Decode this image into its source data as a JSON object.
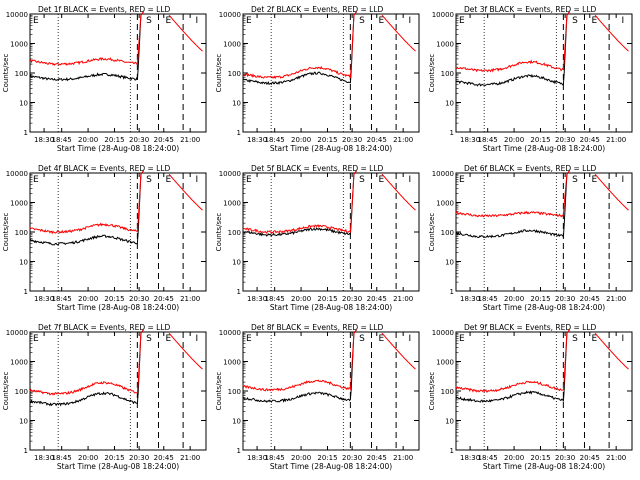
{
  "colors": {
    "events": "#000000",
    "lld": "#ff0000",
    "axes": "#000000",
    "background": "#ffffff"
  },
  "common": {
    "ylabel": "Counts/sec",
    "xlabel": "Start Time (28-Aug-08 18:24:00)",
    "xticks": [
      "18:30",
      "18:45",
      "20:00",
      "20:15",
      "20:30",
      "20:45",
      "21:00"
    ],
    "yticks": [
      "1",
      "10",
      "100",
      "1000",
      "10000"
    ],
    "markers": [
      "S",
      "E",
      "I"
    ],
    "y_scale": "log",
    "ylim": [
      1,
      10000
    ]
  },
  "chart_data": [
    {
      "type": "line",
      "title": "Det 1f BLACK = Events, RED = LLD",
      "ylabel": "Counts/sec",
      "xlabel": "Start Time (28-Aug-08 18:24:00)",
      "series": [
        {
          "name": "Events",
          "color": "#000000",
          "base": 60,
          "bump": 1.5
        },
        {
          "name": "LLD",
          "color": "#ff0000",
          "base": 200,
          "bump": 1.5
        }
      ]
    },
    {
      "type": "line",
      "title": "Det 2f BLACK = Events, RED = LLD",
      "ylabel": "Counts/sec",
      "xlabel": "Start Time (28-Aug-08 18:24:00)",
      "series": [
        {
          "name": "Events",
          "color": "#000000",
          "base": 45,
          "bump": 2.2
        },
        {
          "name": "LLD",
          "color": "#ff0000",
          "base": 70,
          "bump": 2.2
        }
      ]
    },
    {
      "type": "line",
      "title": "Det 3f BLACK = Events, RED = LLD",
      "ylabel": "Counts/sec",
      "xlabel": "Start Time (28-Aug-08 18:24:00)",
      "series": [
        {
          "name": "Events",
          "color": "#000000",
          "base": 40,
          "bump": 2.0
        },
        {
          "name": "LLD",
          "color": "#ff0000",
          "base": 120,
          "bump": 2.0
        }
      ]
    },
    {
      "type": "line",
      "title": "Det 4f BLACK = Events, RED = LLD",
      "ylabel": "Counts/sec",
      "xlabel": "Start Time (28-Aug-08 18:24:00)",
      "series": [
        {
          "name": "Events",
          "color": "#000000",
          "base": 40,
          "bump": 1.8
        },
        {
          "name": "LLD",
          "color": "#ff0000",
          "base": 100,
          "bump": 1.8
        }
      ]
    },
    {
      "type": "line",
      "title": "Det 5f BLACK = Events, RED = LLD",
      "ylabel": "Counts/sec",
      "xlabel": "Start Time (28-Aug-08 18:24:00)",
      "series": [
        {
          "name": "Events",
          "color": "#000000",
          "base": 80,
          "bump": 1.6
        },
        {
          "name": "LLD",
          "color": "#ff0000",
          "base": 100,
          "bump": 1.6
        }
      ]
    },
    {
      "type": "line",
      "title": "Det 6f BLACK = Events, RED = LLD",
      "ylabel": "Counts/sec",
      "xlabel": "Start Time (28-Aug-08 18:24:00)",
      "series": [
        {
          "name": "Events",
          "color": "#000000",
          "base": 70,
          "bump": 1.6
        },
        {
          "name": "LLD",
          "color": "#ff0000",
          "base": 350,
          "bump": 1.3
        }
      ]
    },
    {
      "type": "line",
      "title": "Det 7f BLACK = Events, RED = LLD",
      "ylabel": "Counts/sec",
      "xlabel": "Start Time (28-Aug-08 18:24:00)",
      "series": [
        {
          "name": "Events",
          "color": "#000000",
          "base": 35,
          "bump": 2.4
        },
        {
          "name": "LLD",
          "color": "#ff0000",
          "base": 80,
          "bump": 2.4
        }
      ]
    },
    {
      "type": "line",
      "title": "Det 8f BLACK = Events, RED = LLD",
      "ylabel": "Counts/sec",
      "xlabel": "Start Time (28-Aug-08 18:24:00)",
      "series": [
        {
          "name": "Events",
          "color": "#000000",
          "base": 45,
          "bump": 1.9
        },
        {
          "name": "LLD",
          "color": "#ff0000",
          "base": 110,
          "bump": 2.0
        }
      ]
    },
    {
      "type": "line",
      "title": "Det 9f BLACK = Events, RED = LLD",
      "ylabel": "Counts/sec",
      "xlabel": "Start Time (28-Aug-08 18:24:00)",
      "series": [
        {
          "name": "Events",
          "color": "#000000",
          "base": 45,
          "bump": 2.0
        },
        {
          "name": "LLD",
          "color": "#ff0000",
          "base": 100,
          "bump": 2.0
        }
      ]
    }
  ]
}
